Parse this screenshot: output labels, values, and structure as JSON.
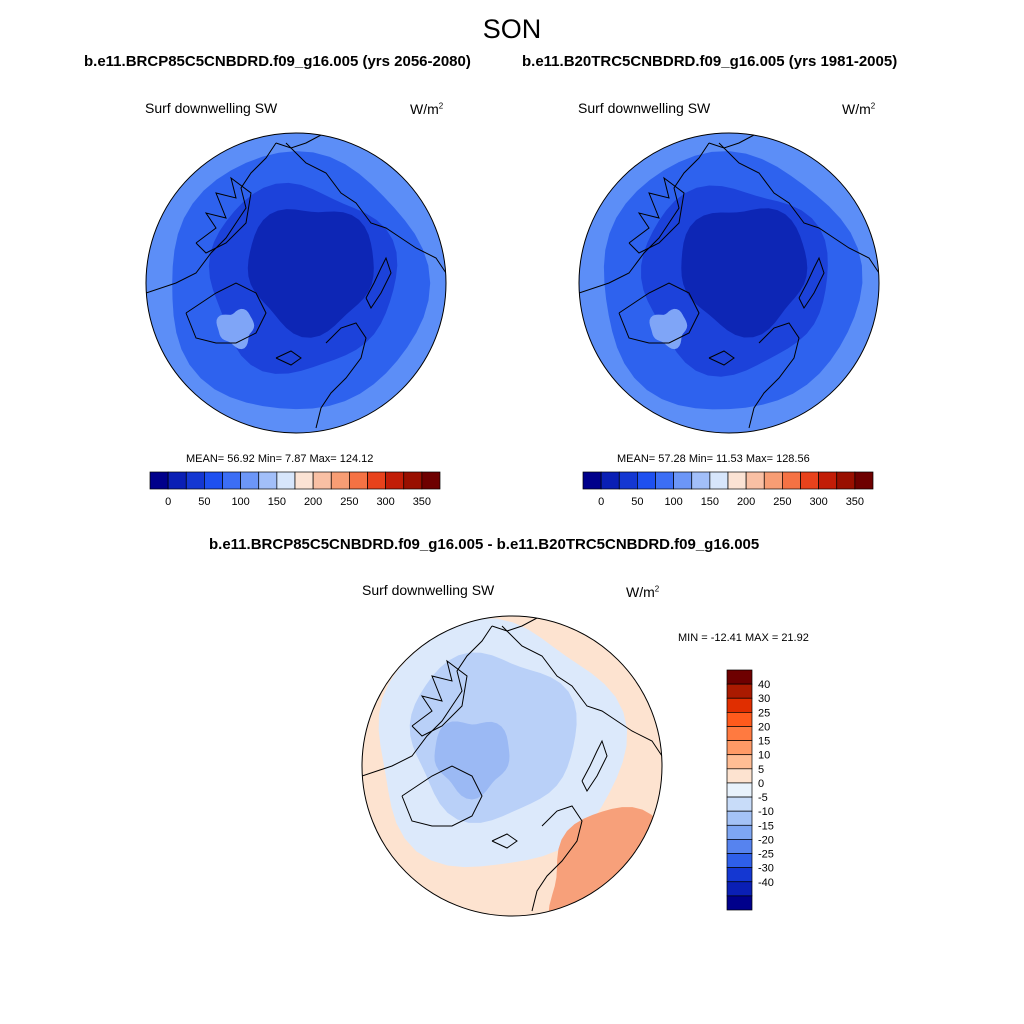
{
  "season": "SON",
  "panels": [
    {
      "case": "b.e11.BRCP85C5CNBDRD.f09_g16.005 (yrs 2056-2080)",
      "variable": "Surf downwelling SW",
      "units": "W/m",
      "units_sup": "2",
      "stats": "MEAN=  56.92  Min=   7.87  Max= 124.12"
    },
    {
      "case": "b.e11.B20TRC5CNBDRD.f09_g16.005 (yrs 1981-2005)",
      "variable": "Surf downwelling SW",
      "units": "W/m",
      "units_sup": "2",
      "stats": "MEAN=  57.28  Min=  11.53  Max= 128.56"
    }
  ],
  "diff": {
    "title": "b.e11.BRCP85C5CNBDRD.f09_g16.005 - b.e11.B20TRC5CNBDRD.f09_g16.005",
    "variable": "Surf downwelling SW",
    "units": "W/m",
    "units_sup": "2",
    "stats": "MIN = -12.41 MAX =  21.92"
  },
  "abs_colorbar": {
    "colors": [
      "#00008b",
      "#0a1fb5",
      "#1437d2",
      "#1e50f0",
      "#3c6ef5",
      "#6c96f7",
      "#a2bff9",
      "#d7e6fb",
      "#fbe3d4",
      "#f9c0a4",
      "#f79d74",
      "#f57244",
      "#e8421c",
      "#c21d07",
      "#990f00",
      "#6e0000"
    ],
    "labels": [
      "0",
      "50",
      "100",
      "150",
      "200",
      "250",
      "300",
      "350"
    ]
  },
  "diff_colorbar": {
    "colors": [
      "#6e0000",
      "#aa1a00",
      "#e02e00",
      "#ff5a1c",
      "#ff7a40",
      "#ff9a66",
      "#ffbd94",
      "#fde3d0",
      "#e8f2fc",
      "#c8dcf9",
      "#a4c2f6",
      "#7ea6f3",
      "#5683ef",
      "#2e5fea",
      "#1437d2",
      "#0a1fb5",
      "#00008b"
    ],
    "labels": [
      "40",
      "30",
      "25",
      "20",
      "15",
      "10",
      "5",
      "0",
      "-5",
      "-10",
      "-15",
      "-20",
      "-25",
      "-30",
      "-40"
    ]
  },
  "map_colors": {
    "abs_outer": "#5c8ef7",
    "abs_mid": "#2e62ee",
    "abs_inner": "#1c42da",
    "abs_core": "#0d26b5",
    "diff_warm": "#fde3d0",
    "diff_warm2": "#f7a07a",
    "diff_cool1": "#dce9fb",
    "diff_cool2": "#b9d0f8",
    "diff_cool3": "#9bb9f4"
  }
}
